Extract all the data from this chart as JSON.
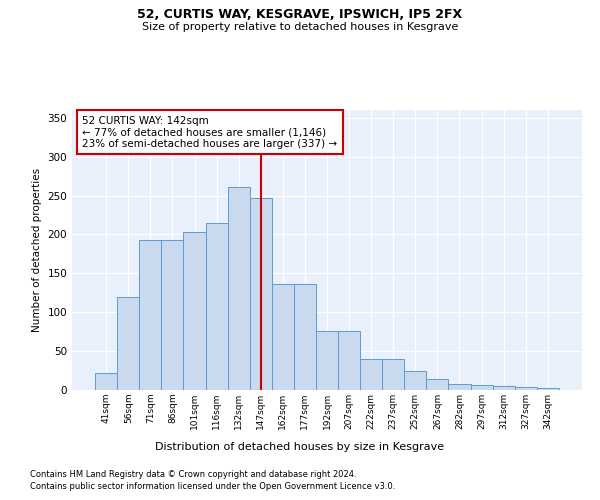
{
  "title1": "52, CURTIS WAY, KESGRAVE, IPSWICH, IP5 2FX",
  "title2": "Size of property relative to detached houses in Kesgrave",
  "xlabel": "Distribution of detached houses by size in Kesgrave",
  "ylabel": "Number of detached properties",
  "categories": [
    "41sqm",
    "56sqm",
    "71sqm",
    "86sqm",
    "101sqm",
    "116sqm",
    "132sqm",
    "147sqm",
    "162sqm",
    "177sqm",
    "192sqm",
    "207sqm",
    "222sqm",
    "237sqm",
    "252sqm",
    "267sqm",
    "282sqm",
    "297sqm",
    "312sqm",
    "327sqm",
    "342sqm"
  ],
  "values": [
    22,
    120,
    193,
    193,
    203,
    215,
    261,
    247,
    136,
    136,
    76,
    76,
    40,
    40,
    25,
    14,
    8,
    7,
    5,
    4,
    2
  ],
  "bar_color": "#c9d9ee",
  "bar_edge_color": "#5b9bd5",
  "vline_x": 7,
  "vline_color": "#cc0000",
  "annotation_line1": "52 CURTIS WAY: 142sqm",
  "annotation_line2": "← 77% of detached houses are smaller (1,146)",
  "annotation_line3": "23% of semi-detached houses are larger (337) →",
  "annotation_box_color": "#ffffff",
  "annotation_box_edge": "#cc0000",
  "ylim": [
    0,
    360
  ],
  "yticks": [
    0,
    50,
    100,
    150,
    200,
    250,
    300,
    350
  ],
  "bg_color": "#eaf0fb",
  "footnote1": "Contains HM Land Registry data © Crown copyright and database right 2024.",
  "footnote2": "Contains public sector information licensed under the Open Government Licence v3.0."
}
